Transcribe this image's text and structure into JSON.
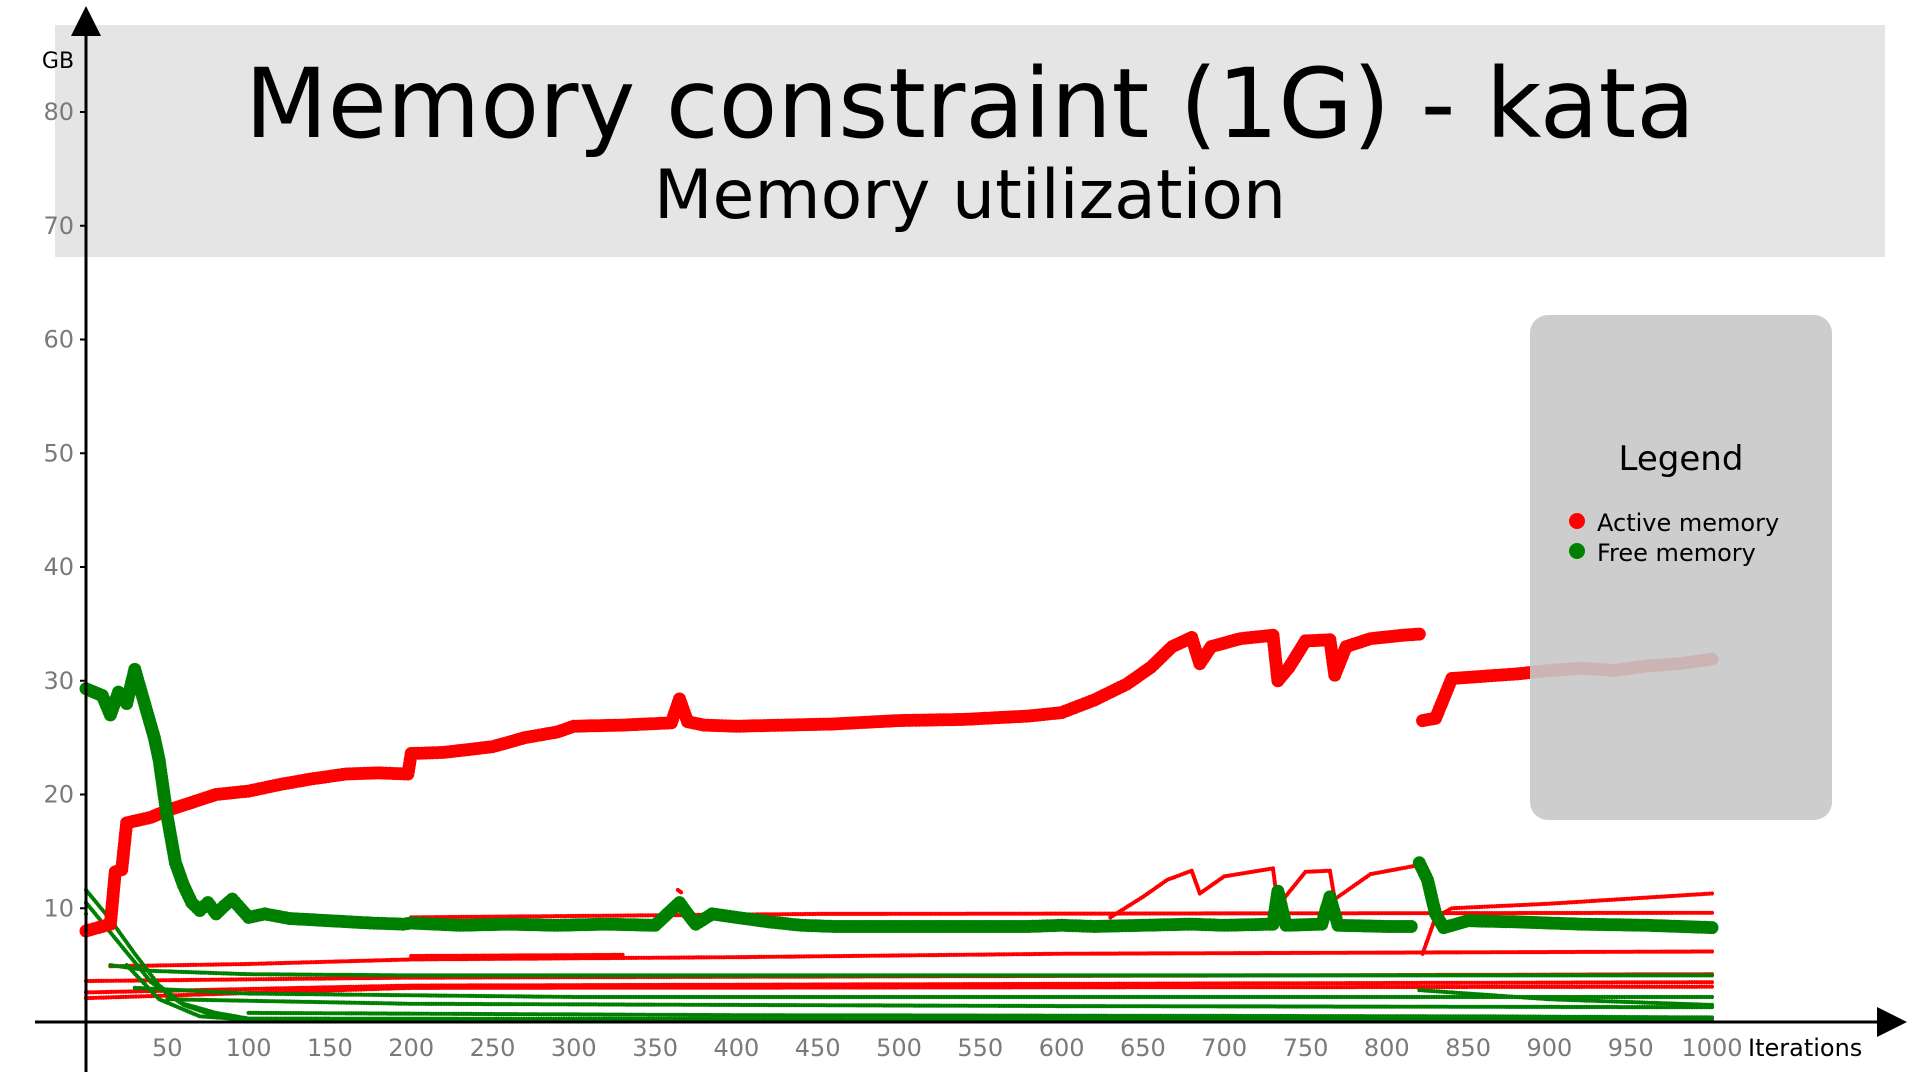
{
  "chart_data": {
    "type": "scatter",
    "title": "Memory constraint (1G) - kata",
    "subtitle": "Memory utilization",
    "xlabel": "Iterations",
    "ylabel": "GB",
    "xlim": [
      0,
      1120
    ],
    "ylim": [
      0,
      90
    ],
    "x_ticks": [
      50,
      100,
      150,
      200,
      250,
      300,
      350,
      400,
      450,
      500,
      550,
      600,
      650,
      700,
      750,
      800,
      850,
      900,
      950,
      1000
    ],
    "y_ticks": [
      10,
      20,
      30,
      40,
      50,
      60,
      70,
      80
    ],
    "legend": {
      "title": "Legend",
      "placement": "right",
      "entries": [
        {
          "label": "Active memory",
          "color": "#ff0000"
        },
        {
          "label": "Free memory",
          "color": "#008000"
        }
      ]
    },
    "series": [
      {
        "name": "Active memory",
        "color": "#ff0000",
        "marker": "large",
        "points": [
          [
            0,
            8
          ],
          [
            5,
            8.2
          ],
          [
            10,
            8.4
          ],
          [
            15,
            8.6
          ],
          [
            18,
            13.2
          ],
          [
            22,
            13.4
          ],
          [
            25,
            17.5
          ],
          [
            40,
            18
          ],
          [
            50,
            18.6
          ],
          [
            65,
            19.3
          ],
          [
            80,
            20
          ],
          [
            100,
            20.3
          ],
          [
            120,
            20.9
          ],
          [
            140,
            21.4
          ],
          [
            160,
            21.8
          ],
          [
            180,
            21.9
          ],
          [
            198,
            21.8
          ],
          [
            200,
            23.6
          ],
          [
            220,
            23.7
          ],
          [
            250,
            24.2
          ],
          [
            270,
            25
          ],
          [
            290,
            25.5
          ],
          [
            300,
            26
          ],
          [
            330,
            26.1
          ],
          [
            360,
            26.3
          ],
          [
            365,
            28.4
          ],
          [
            370,
            26.4
          ],
          [
            380,
            26.1
          ],
          [
            400,
            26
          ],
          [
            430,
            26.1
          ],
          [
            460,
            26.2
          ],
          [
            500,
            26.5
          ],
          [
            540,
            26.6
          ],
          [
            580,
            26.9
          ],
          [
            600,
            27.2
          ],
          [
            620,
            28.3
          ],
          [
            640,
            29.7
          ],
          [
            655,
            31.2
          ],
          [
            668,
            33
          ],
          [
            680,
            33.8
          ],
          [
            685,
            31.5
          ],
          [
            692,
            33
          ],
          [
            710,
            33.7
          ],
          [
            730,
            34
          ],
          [
            733,
            30
          ],
          [
            740,
            31.2
          ],
          [
            750,
            33.5
          ],
          [
            765,
            33.6
          ],
          [
            768,
            30.5
          ],
          [
            775,
            33
          ],
          [
            790,
            33.7
          ],
          [
            810,
            34
          ],
          [
            820,
            34.1
          ],
          [
            822,
            26.5
          ],
          [
            830,
            26.7
          ],
          [
            840,
            30.2
          ],
          [
            860,
            30.4
          ],
          [
            880,
            30.6
          ],
          [
            900,
            30.9
          ],
          [
            920,
            31.1
          ],
          [
            940,
            30.9
          ],
          [
            960,
            31.3
          ],
          [
            980,
            31.5
          ],
          [
            1000,
            31.9
          ]
        ]
      },
      {
        "name": "Free memory",
        "color": "#008000",
        "marker": "large",
        "points": [
          [
            0,
            29.3
          ],
          [
            5,
            29
          ],
          [
            10,
            28.7
          ],
          [
            15,
            27
          ],
          [
            20,
            29
          ],
          [
            25,
            28
          ],
          [
            30,
            31
          ],
          [
            35,
            28.5
          ],
          [
            38,
            27
          ],
          [
            42,
            25
          ],
          [
            45,
            23
          ],
          [
            48,
            20
          ],
          [
            50,
            18
          ],
          [
            55,
            14
          ],
          [
            60,
            12
          ],
          [
            65,
            10.5
          ],
          [
            70,
            9.8
          ],
          [
            75,
            10.5
          ],
          [
            80,
            9.5
          ],
          [
            85,
            10.2
          ],
          [
            90,
            10.8
          ],
          [
            95,
            10
          ],
          [
            100,
            9.2
          ],
          [
            110,
            9.5
          ],
          [
            125,
            9.1
          ],
          [
            150,
            8.9
          ],
          [
            175,
            8.7
          ],
          [
            195,
            8.6
          ],
          [
            200,
            8.7
          ],
          [
            230,
            8.5
          ],
          [
            260,
            8.6
          ],
          [
            290,
            8.5
          ],
          [
            320,
            8.6
          ],
          [
            350,
            8.5
          ],
          [
            365,
            10.5
          ],
          [
            370,
            9.5
          ],
          [
            375,
            8.6
          ],
          [
            385,
            9.5
          ],
          [
            400,
            9.2
          ],
          [
            420,
            8.8
          ],
          [
            440,
            8.5
          ],
          [
            460,
            8.4
          ],
          [
            500,
            8.4
          ],
          [
            540,
            8.4
          ],
          [
            580,
            8.4
          ],
          [
            600,
            8.5
          ],
          [
            620,
            8.4
          ],
          [
            650,
            8.5
          ],
          [
            680,
            8.6
          ],
          [
            700,
            8.5
          ],
          [
            730,
            8.6
          ],
          [
            733,
            11.5
          ],
          [
            738,
            8.5
          ],
          [
            760,
            8.6
          ],
          [
            765,
            11
          ],
          [
            770,
            8.5
          ],
          [
            800,
            8.4
          ],
          [
            815,
            8.4
          ],
          [
            820,
            14
          ],
          [
            825,
            12.5
          ],
          [
            830,
            9.5
          ],
          [
            835,
            8.3
          ],
          [
            850,
            8.9
          ],
          [
            880,
            8.8
          ],
          [
            920,
            8.6
          ],
          [
            960,
            8.5
          ],
          [
            1000,
            8.3
          ]
        ]
      },
      {
        "name": "",
        "color": "#ff0000",
        "marker": "small",
        "points": [
          [
            0,
            3.6
          ],
          [
            200,
            3.9
          ],
          [
            1000,
            4.2
          ]
        ]
      },
      {
        "name": "",
        "color": "#ff0000",
        "marker": "small",
        "points": [
          [
            0,
            2.6
          ],
          [
            200,
            3.2
          ],
          [
            1000,
            3.5
          ]
        ]
      },
      {
        "name": "",
        "color": "#ff0000",
        "marker": "small",
        "points": [
          [
            0,
            2.1
          ],
          [
            200,
            3
          ],
          [
            1000,
            3.1
          ]
        ]
      },
      {
        "name": "",
        "color": "#ff0000",
        "marker": "small",
        "points": [
          [
            15,
            4.9
          ],
          [
            100,
            5.1
          ],
          [
            200,
            5.5
          ],
          [
            400,
            5.7
          ],
          [
            600,
            6
          ],
          [
            1000,
            6.2
          ]
        ]
      },
      {
        "name": "",
        "color": "#ff0000",
        "marker": "small",
        "points": [
          [
            200,
            5.8
          ],
          [
            330,
            5.9
          ]
        ]
      },
      {
        "name": "",
        "color": "#ff0000",
        "marker": "small",
        "points": [
          [
            200,
            9.2
          ],
          [
            450,
            9.5
          ],
          [
            1000,
            9.6
          ]
        ]
      },
      {
        "name": "",
        "color": "#ff0000",
        "marker": "small",
        "points": [
          [
            630,
            9.2
          ],
          [
            650,
            11
          ],
          [
            665,
            12.5
          ],
          [
            680,
            13.3
          ],
          [
            685,
            11.3
          ],
          [
            700,
            12.8
          ],
          [
            730,
            13.5
          ],
          [
            733,
            10.2
          ],
          [
            750,
            13.2
          ],
          [
            765,
            13.3
          ],
          [
            768,
            10.8
          ],
          [
            790,
            13
          ],
          [
            820,
            13.8
          ],
          [
            822,
            6
          ],
          [
            830,
            9.2
          ],
          [
            840,
            10
          ],
          [
            900,
            10.4
          ],
          [
            1000,
            11.3
          ]
        ]
      },
      {
        "name": "",
        "color": "#ff0000",
        "marker": "small",
        "points": [
          [
            364,
            11.6
          ],
          [
            366,
            11.4
          ]
        ]
      },
      {
        "name": "",
        "color": "#008000",
        "marker": "small",
        "points": [
          [
            0,
            11.6
          ],
          [
            15,
            9
          ],
          [
            30,
            6
          ],
          [
            45,
            3.2
          ],
          [
            60,
            1.6
          ],
          [
            80,
            0.8
          ],
          [
            100,
            0.3
          ],
          [
            1000,
            0.2
          ]
        ]
      },
      {
        "name": "",
        "color": "#008000",
        "marker": "small",
        "points": [
          [
            0,
            10.5
          ],
          [
            20,
            7
          ],
          [
            40,
            3.5
          ],
          [
            60,
            1.5
          ],
          [
            80,
            0.5
          ],
          [
            100,
            0.2
          ]
        ]
      },
      {
        "name": "",
        "color": "#008000",
        "marker": "small",
        "points": [
          [
            0,
            9.5
          ],
          [
            25,
            5
          ],
          [
            45,
            2
          ],
          [
            70,
            0.5
          ],
          [
            100,
            0.2
          ]
        ]
      },
      {
        "name": "",
        "color": "#008000",
        "marker": "small",
        "points": [
          [
            15,
            5
          ],
          [
            40,
            4.5
          ],
          [
            100,
            4.2
          ],
          [
            200,
            4.1
          ],
          [
            600,
            4.1
          ],
          [
            1000,
            4.1
          ]
        ]
      },
      {
        "name": "",
        "color": "#008000",
        "marker": "small",
        "points": [
          [
            30,
            3
          ],
          [
            100,
            2.5
          ],
          [
            300,
            2.2
          ],
          [
            600,
            2.2
          ],
          [
            1000,
            2.2
          ]
        ]
      },
      {
        "name": "",
        "color": "#008000",
        "marker": "small",
        "points": [
          [
            50,
            2
          ],
          [
            200,
            1.6
          ],
          [
            600,
            1.4
          ],
          [
            1000,
            1.3
          ]
        ]
      },
      {
        "name": "",
        "color": "#008000",
        "marker": "small",
        "points": [
          [
            100,
            0.8
          ],
          [
            400,
            0.6
          ],
          [
            850,
            0.5
          ],
          [
            1000,
            0.4
          ]
        ]
      },
      {
        "name": "",
        "color": "#008000",
        "marker": "small",
        "points": [
          [
            820,
            2.8
          ],
          [
            900,
            2
          ],
          [
            1000,
            1.5
          ]
        ]
      }
    ]
  }
}
